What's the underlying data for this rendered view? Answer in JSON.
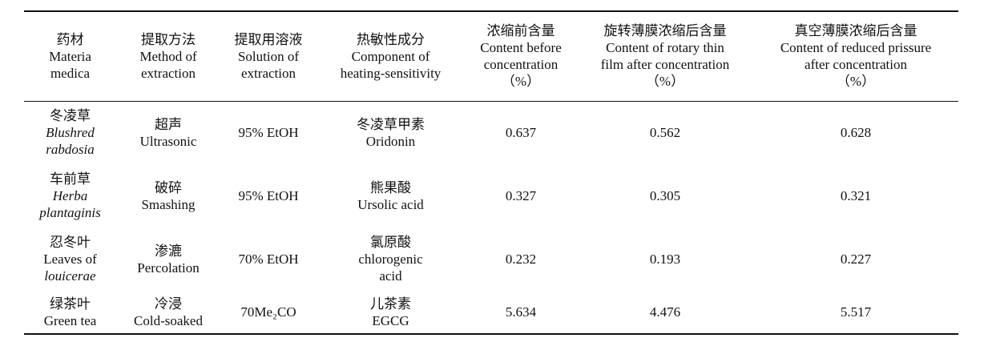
{
  "table": {
    "header": [
      [
        "药材",
        "Materia",
        "medica"
      ],
      [
        "提取方法",
        "Method of",
        "extraction"
      ],
      [
        "提取用溶液",
        "Solution of",
        "extraction"
      ],
      [
        "热敏性成分",
        "Component of",
        "heating-sensitivity"
      ],
      [
        "浓缩前含量",
        "Content before",
        "concentration",
        "（%）"
      ],
      [
        "旋转薄膜浓缩后含量",
        "Content of rotary thin",
        "film after concentration",
        "（%）"
      ],
      [
        "真空薄膜浓缩后含量",
        "Content of reduced prissure",
        "after concentration",
        "（%）"
      ]
    ],
    "rows": [
      {
        "material": [
          "冬凌草",
          "Blushred",
          "rabdosia"
        ],
        "method": [
          "超声",
          "Ultrasonic"
        ],
        "solvent": "95% EtOH",
        "component": [
          "冬凌草甲素",
          "Oridonin"
        ],
        "before": 0.637,
        "rotary": 0.562,
        "vacuum": 0.628
      },
      {
        "material": [
          "车前草",
          "Herba",
          "plantaginis"
        ],
        "method": [
          "破碎",
          "Smashing"
        ],
        "solvent": "95% EtOH",
        "component": [
          "熊果酸",
          "Ursolic acid"
        ],
        "before": 0.327,
        "rotary": 0.305,
        "vacuum": 0.321
      },
      {
        "material": [
          "忍冬叶",
          "Leaves of",
          "louicerae"
        ],
        "method": [
          "渗漉",
          "Percolation"
        ],
        "solvent": "70% EtOH",
        "component": [
          "氯原酸",
          "chlorogenic",
          "acid"
        ],
        "before": 0.232,
        "rotary": 0.193,
        "vacuum": 0.227
      },
      {
        "material": [
          "绿茶叶",
          "Green tea"
        ],
        "method": [
          "冷浸",
          "Cold-soaked"
        ],
        "solvent": "70Me₂CO",
        "component": [
          "儿茶素",
          "EGCG"
        ],
        "before": 5.634,
        "rotary": 4.476,
        "vacuum": 5.517
      }
    ]
  }
}
